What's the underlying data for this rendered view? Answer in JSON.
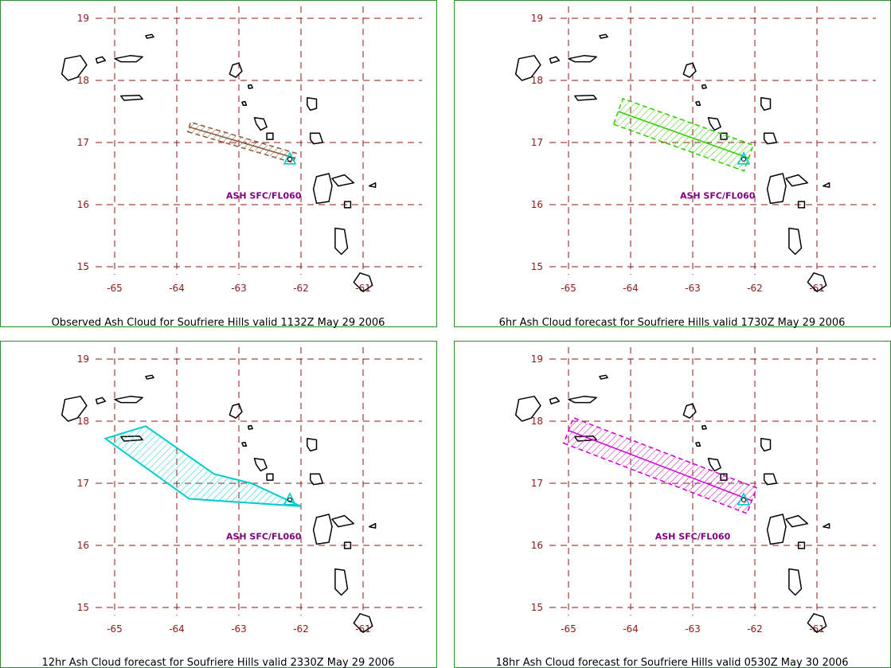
{
  "colors": {
    "frame": "#2f8f2f",
    "grid": "#8b1a1a",
    "tick_label": "#8b1a1a",
    "coast": "#000000",
    "label": "#800080"
  },
  "panels": [
    {
      "caption": "Observed Ash Cloud for Soufriere  Hills valid 1132Z May 29 2006",
      "ash_label": "ASH SFC/FL060",
      "cloud_color": "#8b5a3c",
      "cloud_style": "band",
      "cloud_coords": [
        [
          -63.8,
          17.25
        ],
        [
          -62.1,
          16.75
        ]
      ],
      "cloud_halfwidth": 0.08,
      "label_pos": [
        -62.6,
        16.15
      ],
      "volcano": [
        -62.18,
        16.72
      ]
    },
    {
      "caption": "6hr Ash Cloud forecast for Soufriere  Hills valid 1730Z May 29 2006",
      "ash_label": "ASH SFC/FL060",
      "cloud_color": "#33cc00",
      "cloud_style": "band",
      "cloud_coords": [
        [
          -64.2,
          17.5
        ],
        [
          -62.1,
          16.75
        ]
      ],
      "cloud_halfwidth": 0.22,
      "label_pos": [
        -62.6,
        16.15
      ],
      "volcano": [
        -62.18,
        16.72
      ]
    },
    {
      "caption": "12hr Ash Cloud forecast for Soufriere  Hills valid 2330Z May 29 2006",
      "ash_label": "ASH SFC/FL060",
      "cloud_color": "#00cccc",
      "cloud_style": "polygon",
      "cloud_coords": [
        [
          -65.15,
          17.72
        ],
        [
          -64.5,
          17.92
        ],
        [
          -63.4,
          17.15
        ],
        [
          -62.8,
          17.0
        ],
        [
          -62.0,
          16.63
        ],
        [
          -63.8,
          16.75
        ]
      ],
      "label_pos": [
        -62.6,
        16.15
      ],
      "volcano": [
        -62.18,
        16.72
      ]
    },
    {
      "caption": "18hr Ash Cloud forecast for Soufriere  Hills valid 0530Z May 30 2006",
      "ash_label": "ASH SFC/FL060",
      "cloud_color": "#cc00cc",
      "cloud_style": "band",
      "cloud_coords": [
        [
          -65.0,
          17.85
        ],
        [
          -62.05,
          16.72
        ]
      ],
      "cloud_halfwidth": 0.22,
      "label_pos": [
        -63.0,
        16.15
      ],
      "volcano": [
        -62.18,
        16.72
      ]
    }
  ],
  "lat_ticks": [
    "19",
    "18",
    "17",
    "16",
    "15"
  ],
  "lon_ticks": [
    "-65",
    "-64",
    "-63",
    "-62",
    "-61"
  ],
  "lat_values": [
    19,
    18,
    17,
    16,
    15
  ],
  "lon_values": [
    -65,
    -64,
    -63,
    -62,
    -61
  ],
  "map_extent": {
    "lon_min": -65.5,
    "lon_max": -60.8,
    "lat_min": 14.8,
    "lat_max": 19.2
  },
  "islands": [
    [
      [
        -65.8,
        18.35
      ],
      [
        -65.55,
        18.4
      ],
      [
        -65.45,
        18.25
      ],
      [
        -65.6,
        18.05
      ],
      [
        -65.75,
        18.0
      ],
      [
        -65.85,
        18.1
      ]
    ],
    [
      [
        -65.3,
        18.35
      ],
      [
        -65.2,
        18.38
      ],
      [
        -65.15,
        18.32
      ],
      [
        -65.28,
        18.28
      ]
    ],
    [
      [
        -65.0,
        18.35
      ],
      [
        -64.75,
        18.4
      ],
      [
        -64.55,
        18.38
      ],
      [
        -64.65,
        18.3
      ],
      [
        -64.9,
        18.3
      ]
    ],
    [
      [
        -64.5,
        18.72
      ],
      [
        -64.4,
        18.74
      ],
      [
        -64.37,
        18.7
      ],
      [
        -64.48,
        18.68
      ]
    ],
    [
      [
        -64.9,
        17.75
      ],
      [
        -64.6,
        17.76
      ],
      [
        -64.55,
        17.7
      ],
      [
        -64.85,
        17.68
      ]
    ],
    [
      [
        -63.1,
        18.25
      ],
      [
        -63.0,
        18.28
      ],
      [
        -62.95,
        18.15
      ],
      [
        -63.05,
        18.05
      ],
      [
        -63.15,
        18.1
      ]
    ],
    [
      [
        -62.85,
        17.92
      ],
      [
        -62.8,
        17.93
      ],
      [
        -62.78,
        17.88
      ],
      [
        -62.84,
        17.87
      ]
    ],
    [
      [
        -62.95,
        17.65
      ],
      [
        -62.9,
        17.66
      ],
      [
        -62.88,
        17.6
      ],
      [
        -62.93,
        17.6
      ]
    ],
    [
      [
        -62.75,
        17.4
      ],
      [
        -62.6,
        17.38
      ],
      [
        -62.55,
        17.25
      ],
      [
        -62.65,
        17.2
      ],
      [
        -62.72,
        17.3
      ]
    ],
    [
      [
        -62.55,
        17.15
      ],
      [
        -62.45,
        17.15
      ],
      [
        -62.45,
        17.05
      ],
      [
        -62.55,
        17.05
      ]
    ],
    [
      [
        -61.9,
        17.72
      ],
      [
        -61.75,
        17.7
      ],
      [
        -61.75,
        17.55
      ],
      [
        -61.85,
        17.52
      ],
      [
        -61.9,
        17.6
      ]
    ],
    [
      [
        -61.85,
        17.15
      ],
      [
        -61.7,
        17.15
      ],
      [
        -61.65,
        17.0
      ],
      [
        -61.8,
        16.98
      ],
      [
        -61.85,
        17.05
      ]
    ],
    [
      [
        -61.75,
        16.45
      ],
      [
        -61.55,
        16.5
      ],
      [
        -61.5,
        16.3
      ],
      [
        -61.55,
        16.05
      ],
      [
        -61.75,
        16.02
      ],
      [
        -61.8,
        16.25
      ]
    ],
    [
      [
        -61.5,
        16.42
      ],
      [
        -61.3,
        16.48
      ],
      [
        -61.15,
        16.35
      ],
      [
        -61.4,
        16.3
      ]
    ],
    [
      [
        -61.3,
        16.05
      ],
      [
        -61.2,
        16.05
      ],
      [
        -61.2,
        15.95
      ],
      [
        -61.3,
        15.95
      ]
    ],
    [
      [
        -61.45,
        15.62
      ],
      [
        -61.3,
        15.6
      ],
      [
        -61.25,
        15.3
      ],
      [
        -61.35,
        15.2
      ],
      [
        -61.45,
        15.3
      ]
    ],
    [
      [
        -61.05,
        14.9
      ],
      [
        -60.9,
        14.85
      ],
      [
        -60.85,
        14.7
      ],
      [
        -61.0,
        14.6
      ],
      [
        -61.15,
        14.75
      ]
    ],
    [
      [
        -60.9,
        16.3
      ],
      [
        -60.8,
        16.35
      ],
      [
        -60.8,
        16.28
      ]
    ]
  ],
  "island_labels": [],
  "notes": []
}
